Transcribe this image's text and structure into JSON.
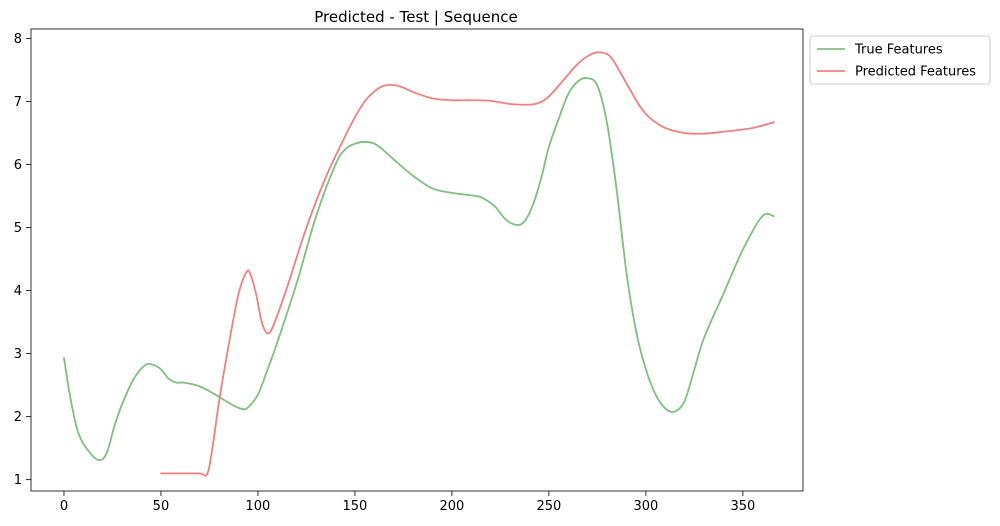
{
  "chart_data": {
    "type": "line",
    "title": "Predicted - Test | Sequence",
    "xlabel": "",
    "ylabel": "",
    "xlim": [
      -17,
      381
    ],
    "ylim": [
      0.82,
      8.15
    ],
    "xticks": [
      0,
      50,
      100,
      150,
      200,
      250,
      300,
      350
    ],
    "yticks": [
      1,
      2,
      3,
      4,
      5,
      6,
      7,
      8
    ],
    "grid": false,
    "legend_position": "outside-top-right",
    "series": [
      {
        "name": "True Features",
        "color": "#7fbf7f",
        "x": [
          0,
          3,
          7,
          12,
          18,
          22,
          26,
          30,
          36,
          42,
          46,
          50,
          54,
          58,
          62,
          70,
          78,
          86,
          92,
          95,
          100,
          105,
          110,
          120,
          130,
          140,
          145,
          150,
          155,
          160,
          165,
          170,
          180,
          190,
          200,
          210,
          215,
          222,
          228,
          234,
          238,
          242,
          246,
          250,
          255,
          260,
          265,
          270,
          275,
          280,
          285,
          290,
          295,
          300,
          305,
          310,
          315,
          320,
          325,
          330,
          340,
          350,
          360,
          366
        ],
        "y": [
          2.93,
          2.35,
          1.78,
          1.48,
          1.31,
          1.42,
          1.85,
          2.2,
          2.6,
          2.82,
          2.82,
          2.75,
          2.6,
          2.54,
          2.54,
          2.48,
          2.35,
          2.2,
          2.12,
          2.15,
          2.35,
          2.75,
          3.18,
          4.12,
          5.18,
          6.0,
          6.24,
          6.33,
          6.36,
          6.33,
          6.22,
          6.08,
          5.82,
          5.62,
          5.55,
          5.51,
          5.48,
          5.34,
          5.12,
          5.04,
          5.12,
          5.38,
          5.78,
          6.28,
          6.72,
          7.12,
          7.32,
          7.37,
          7.25,
          6.65,
          5.58,
          4.28,
          3.35,
          2.75,
          2.35,
          2.13,
          2.08,
          2.25,
          2.75,
          3.25,
          3.95,
          4.65,
          5.18,
          5.18
        ]
      },
      {
        "name": "Predicted Features",
        "color": "#f08080",
        "x": [
          50,
          60,
          70,
          74,
          77,
          80,
          85,
          90,
          94,
          96,
          99,
          102,
          105,
          108,
          115,
          125,
          135,
          145,
          150,
          155,
          160,
          165,
          170,
          175,
          180,
          190,
          200,
          210,
          220,
          230,
          240,
          245,
          250,
          255,
          260,
          265,
          270,
          275,
          280,
          283,
          287,
          292,
          297,
          302,
          310,
          320,
          330,
          340,
          355,
          366
        ],
        "y": [
          1.1,
          1.1,
          1.1,
          1.1,
          1.6,
          2.25,
          3.15,
          3.95,
          4.29,
          4.27,
          3.95,
          3.5,
          3.32,
          3.45,
          4.05,
          5.0,
          5.8,
          6.45,
          6.75,
          7.0,
          7.16,
          7.25,
          7.26,
          7.22,
          7.15,
          7.05,
          7.02,
          7.02,
          7.01,
          6.96,
          6.95,
          6.98,
          7.08,
          7.25,
          7.43,
          7.6,
          7.72,
          7.78,
          7.75,
          7.66,
          7.45,
          7.18,
          6.92,
          6.74,
          6.58,
          6.5,
          6.49,
          6.52,
          6.58,
          6.67
        ]
      }
    ]
  }
}
